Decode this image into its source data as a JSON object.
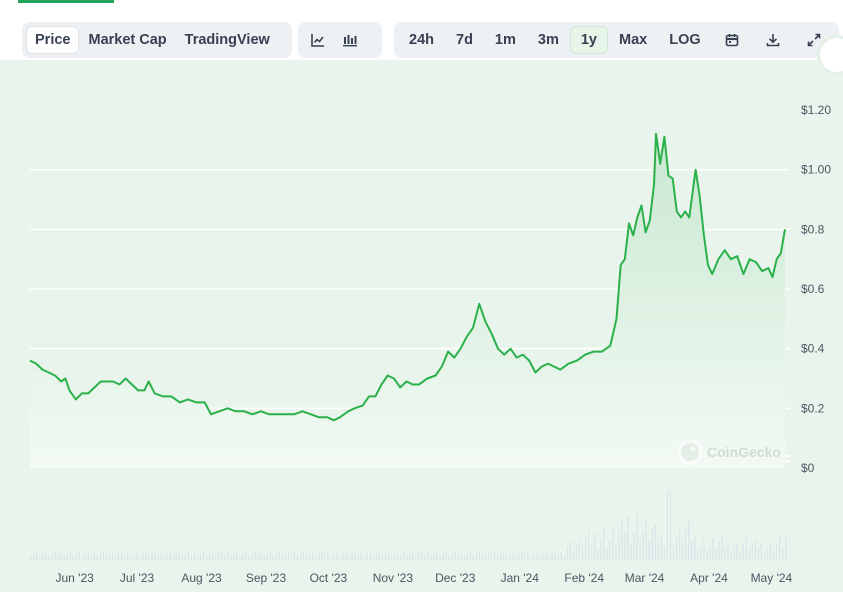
{
  "toolbar": {
    "metrics": [
      "Price",
      "Market Cap",
      "TradingView"
    ],
    "active_metric": "Price",
    "chart_style_icons": [
      "line-chart-icon",
      "candlestick-icon"
    ],
    "ranges": [
      "24h",
      "7d",
      "1m",
      "3m",
      "1y",
      "Max",
      "LOG"
    ],
    "active_range": "1y",
    "action_icons": [
      "calendar-icon",
      "download-icon",
      "expand-icon"
    ]
  },
  "watermark": "CoinGecko",
  "colors": {
    "line": "#2bb14a",
    "area_top": "#cfead6",
    "plot_bg": "#e8f4eb",
    "gridline": "#ffffff",
    "volume": "#dfe4ea"
  },
  "chart_data": {
    "type": "area",
    "title": "",
    "xlabel": "",
    "ylabel": "",
    "ylim": [
      0,
      1.2
    ],
    "y_ticks": [
      "$0",
      "$0.2",
      "$0.4",
      "$0.6",
      "$0.8",
      "$1.00",
      "$1.20"
    ],
    "y_tick_values": [
      0,
      0.2,
      0.4,
      0.6,
      0.8,
      1.0,
      1.2
    ],
    "x_ticks": [
      "Jun '23",
      "Jul '23",
      "Aug '23",
      "Sep '23",
      "Oct '23",
      "Nov '23",
      "Dec '23",
      "Jan '24",
      "Feb '24",
      "Mar '24",
      "Apr '24",
      "May '24"
    ],
    "x_tick_dates": [
      "2023-06-01",
      "2023-07-01",
      "2023-08-01",
      "2023-09-01",
      "2023-10-01",
      "2023-11-01",
      "2023-12-01",
      "2024-01-01",
      "2024-02-01",
      "2024-03-01",
      "2024-04-01",
      "2024-05-01"
    ],
    "grid": true,
    "series": [
      {
        "points": [
          [
            "2023-05-24",
            0.36
          ],
          [
            "2023-05-27",
            0.35
          ],
          [
            "2023-05-30",
            0.33
          ],
          [
            "2023-06-02",
            0.32
          ],
          [
            "2023-06-05",
            0.31
          ],
          [
            "2023-06-08",
            0.29
          ],
          [
            "2023-06-10",
            0.3
          ],
          [
            "2023-06-12",
            0.26
          ],
          [
            "2023-06-15",
            0.23
          ],
          [
            "2023-06-18",
            0.25
          ],
          [
            "2023-06-21",
            0.25
          ],
          [
            "2023-06-24",
            0.27
          ],
          [
            "2023-06-27",
            0.29
          ],
          [
            "2023-06-30",
            0.29
          ],
          [
            "2023-07-03",
            0.29
          ],
          [
            "2023-07-06",
            0.28
          ],
          [
            "2023-07-09",
            0.3
          ],
          [
            "2023-07-12",
            0.28
          ],
          [
            "2023-07-15",
            0.26
          ],
          [
            "2023-07-18",
            0.26
          ],
          [
            "2023-07-20",
            0.29
          ],
          [
            "2023-07-23",
            0.25
          ],
          [
            "2023-07-27",
            0.24
          ],
          [
            "2023-07-31",
            0.24
          ],
          [
            "2023-08-04",
            0.22
          ],
          [
            "2023-08-08",
            0.23
          ],
          [
            "2023-08-12",
            0.22
          ],
          [
            "2023-08-16",
            0.22
          ],
          [
            "2023-08-19",
            0.18
          ],
          [
            "2023-08-23",
            0.19
          ],
          [
            "2023-08-27",
            0.2
          ],
          [
            "2023-08-31",
            0.19
          ],
          [
            "2023-09-04",
            0.19
          ],
          [
            "2023-09-08",
            0.18
          ],
          [
            "2023-09-12",
            0.19
          ],
          [
            "2023-09-16",
            0.18
          ],
          [
            "2023-09-20",
            0.18
          ],
          [
            "2023-09-24",
            0.18
          ],
          [
            "2023-09-28",
            0.18
          ],
          [
            "2023-10-02",
            0.19
          ],
          [
            "2023-10-06",
            0.18
          ],
          [
            "2023-10-10",
            0.17
          ],
          [
            "2023-10-14",
            0.17
          ],
          [
            "2023-10-17",
            0.16
          ],
          [
            "2023-10-20",
            0.17
          ],
          [
            "2023-10-24",
            0.19
          ],
          [
            "2023-10-27",
            0.2
          ],
          [
            "2023-10-31",
            0.21
          ],
          [
            "2023-11-03",
            0.24
          ],
          [
            "2023-11-06",
            0.24
          ],
          [
            "2023-11-09",
            0.28
          ],
          [
            "2023-11-12",
            0.31
          ],
          [
            "2023-11-15",
            0.3
          ],
          [
            "2023-11-18",
            0.27
          ],
          [
            "2023-11-21",
            0.29
          ],
          [
            "2023-11-24",
            0.28
          ],
          [
            "2023-11-27",
            0.28
          ],
          [
            "2023-12-01",
            0.3
          ],
          [
            "2023-12-05",
            0.31
          ],
          [
            "2023-12-08",
            0.34
          ],
          [
            "2023-12-11",
            0.39
          ],
          [
            "2023-12-14",
            0.37
          ],
          [
            "2023-12-17",
            0.4
          ],
          [
            "2023-12-20",
            0.44
          ],
          [
            "2023-12-23",
            0.47
          ],
          [
            "2023-12-26",
            0.55
          ],
          [
            "2023-12-29",
            0.49
          ],
          [
            "2024-01-01",
            0.45
          ],
          [
            "2024-01-04",
            0.4
          ],
          [
            "2024-01-07",
            0.38
          ],
          [
            "2024-01-10",
            0.4
          ],
          [
            "2024-01-13",
            0.37
          ],
          [
            "2024-01-16",
            0.38
          ],
          [
            "2024-01-19",
            0.36
          ],
          [
            "2024-01-22",
            0.32
          ],
          [
            "2024-01-25",
            0.34
          ],
          [
            "2024-01-28",
            0.35
          ],
          [
            "2024-01-31",
            0.34
          ],
          [
            "2024-02-03",
            0.33
          ],
          [
            "2024-02-07",
            0.35
          ],
          [
            "2024-02-11",
            0.36
          ],
          [
            "2024-02-15",
            0.38
          ],
          [
            "2024-02-19",
            0.39
          ],
          [
            "2024-02-23",
            0.39
          ],
          [
            "2024-02-27",
            0.41
          ],
          [
            "2024-03-01",
            0.5
          ],
          [
            "2024-03-03",
            0.68
          ],
          [
            "2024-03-05",
            0.7
          ],
          [
            "2024-03-07",
            0.82
          ],
          [
            "2024-03-09",
            0.78
          ],
          [
            "2024-03-11",
            0.84
          ],
          [
            "2024-03-13",
            0.88
          ],
          [
            "2024-03-15",
            0.79
          ],
          [
            "2024-03-17",
            0.83
          ],
          [
            "2024-03-19",
            0.95
          ],
          [
            "2024-03-20",
            1.12
          ],
          [
            "2024-03-22",
            1.02
          ],
          [
            "2024-03-24",
            1.11
          ],
          [
            "2024-03-26",
            0.98
          ],
          [
            "2024-03-28",
            0.97
          ],
          [
            "2024-03-30",
            0.86
          ],
          [
            "2024-04-01",
            0.84
          ],
          [
            "2024-04-03",
            0.86
          ],
          [
            "2024-04-05",
            0.84
          ],
          [
            "2024-04-08",
            1.0
          ],
          [
            "2024-04-10",
            0.91
          ],
          [
            "2024-04-12",
            0.78
          ],
          [
            "2024-04-14",
            0.68
          ],
          [
            "2024-04-16",
            0.65
          ],
          [
            "2024-04-19",
            0.7
          ],
          [
            "2024-04-22",
            0.73
          ],
          [
            "2024-04-25",
            0.7
          ],
          [
            "2024-04-28",
            0.71
          ],
          [
            "2024-05-01",
            0.65
          ],
          [
            "2024-05-04",
            0.7
          ],
          [
            "2024-05-07",
            0.69
          ],
          [
            "2024-05-10",
            0.66
          ],
          [
            "2024-05-13",
            0.67
          ],
          [
            "2024-05-15",
            0.64
          ],
          [
            "2024-05-17",
            0.7
          ],
          [
            "2024-05-19",
            0.72
          ],
          [
            "2024-05-21",
            0.8
          ]
        ]
      }
    ],
    "volume_ticks": 0
  }
}
